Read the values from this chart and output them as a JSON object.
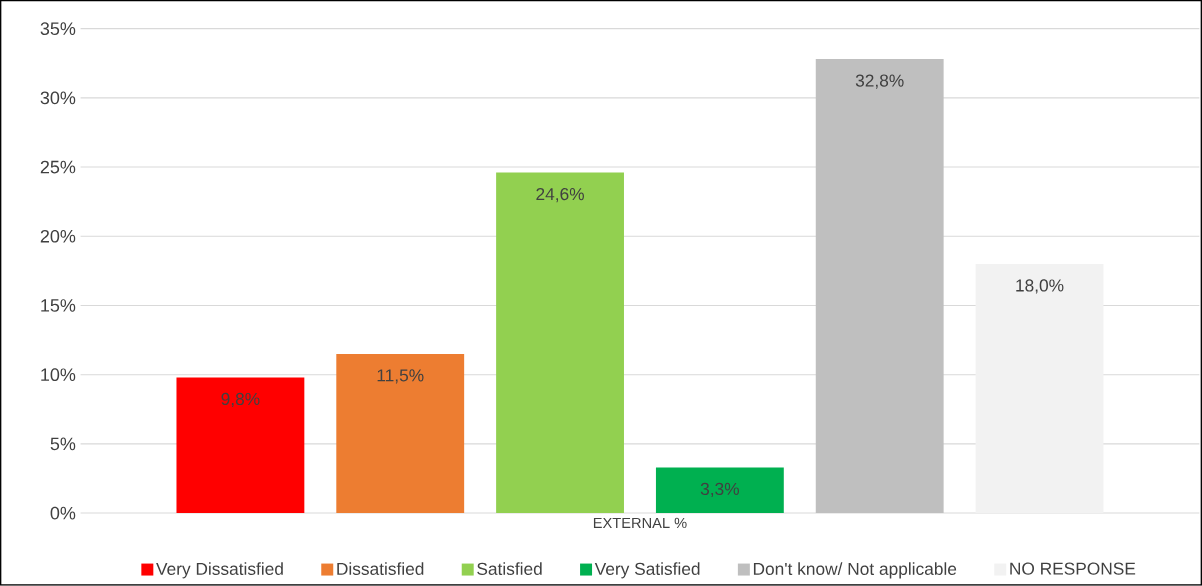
{
  "chart_data": {
    "type": "bar",
    "categories": [
      "EXTERNAL %"
    ],
    "series": [
      {
        "name": "Very Dissatisfied",
        "color": "#ff0000",
        "values": [
          9.8
        ],
        "value_labels": [
          "9,8%"
        ]
      },
      {
        "name": "Dissatisfied",
        "color": "#ed7d31",
        "values": [
          11.5
        ],
        "value_labels": [
          "11,5%"
        ]
      },
      {
        "name": "Satisfied",
        "color": "#92d050",
        "values": [
          24.6
        ],
        "value_labels": [
          "24,6%"
        ]
      },
      {
        "name": "Very Satisfied",
        "color": "#00b050",
        "values": [
          3.3
        ],
        "value_labels": [
          "3,3%"
        ]
      },
      {
        "name": "Don't know/ Not applicable",
        "color": "#bfbfbf",
        "values": [
          32.8
        ],
        "value_labels": [
          "32,8%"
        ]
      },
      {
        "name": "NO RESPONSE",
        "color": "#f2f2f2",
        "values": [
          18.0
        ],
        "value_labels": [
          "18,0%"
        ]
      }
    ],
    "ylim": [
      0,
      35
    ],
    "yticks": [
      {
        "value": 0,
        "label": "0%"
      },
      {
        "value": 5,
        "label": "5%"
      },
      {
        "value": 10,
        "label": "10%"
      },
      {
        "value": 15,
        "label": "15%"
      },
      {
        "value": 20,
        "label": "20%"
      },
      {
        "value": 25,
        "label": "25%"
      },
      {
        "value": 30,
        "label": "30%"
      },
      {
        "value": 35,
        "label": "35%"
      }
    ],
    "grid": "y",
    "legend": "bottom"
  }
}
